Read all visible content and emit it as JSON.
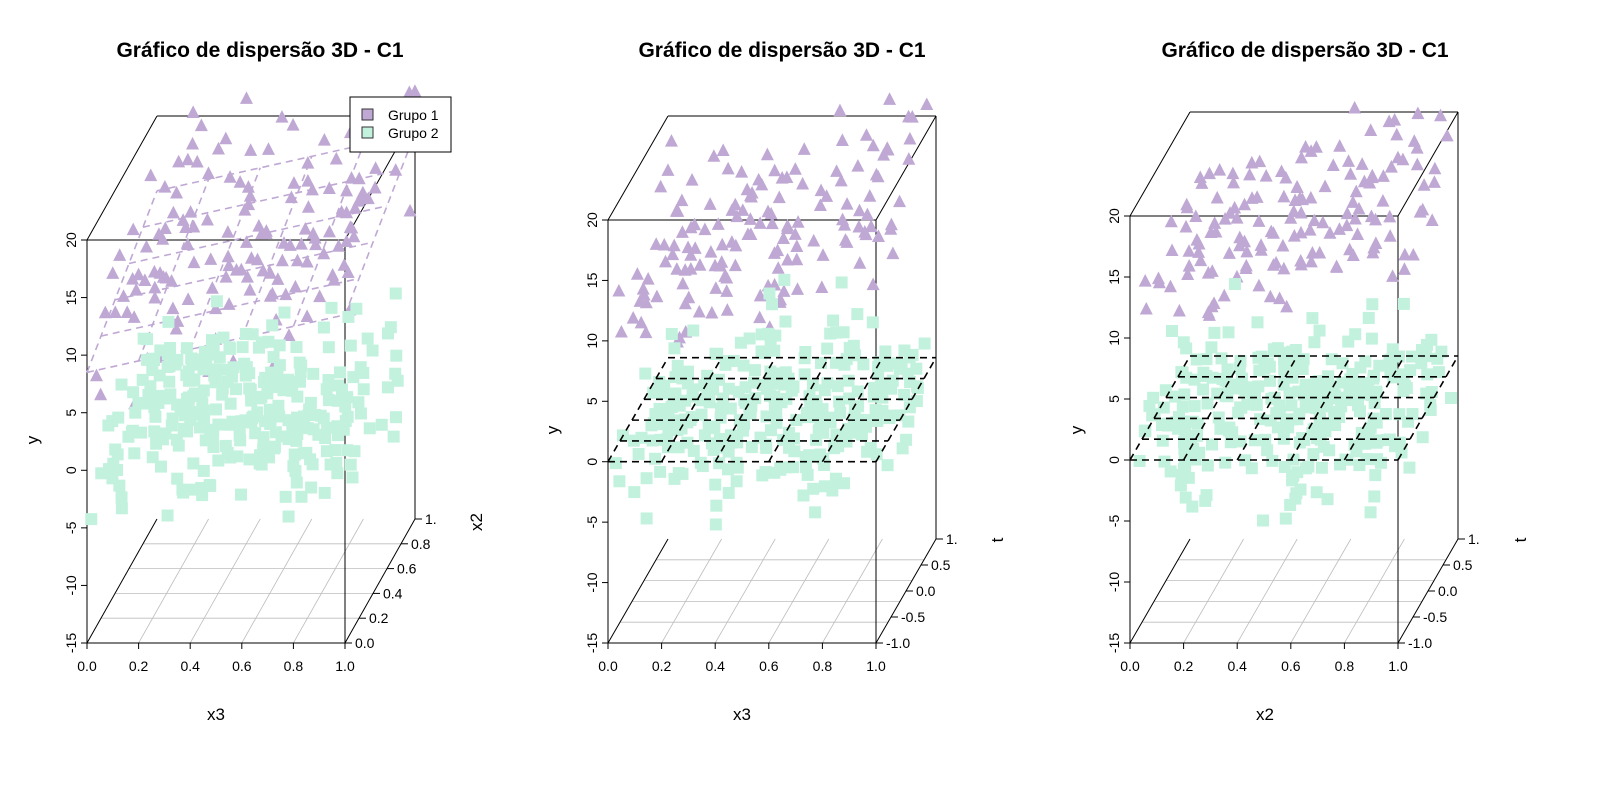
{
  "legend": {
    "placement": "top-right of first panel",
    "items": [
      {
        "label": "Grupo 1",
        "color": "#BFA8D4",
        "marker": "triangle"
      },
      {
        "label": "Grupo 2",
        "color": "#C2F2DE",
        "marker": "square"
      }
    ]
  },
  "chart_data": [
    {
      "type": "scatter",
      "title": "Gráfico de dispersão 3D - C1",
      "xlabel": "x3",
      "ylabel": "y",
      "zlabel": "x2",
      "xticks": [
        "0.0",
        "0.2",
        "0.4",
        "0.6",
        "0.8",
        "1.0"
      ],
      "yticks": [
        "-15",
        "-10",
        "-5",
        "0",
        "5",
        "10",
        "15",
        "20"
      ],
      "zticks": [
        "0.0",
        "0.2",
        "0.4",
        "0.6",
        "0.8",
        "1."
      ],
      "xlim": [
        0,
        1
      ],
      "ylim": [
        -15,
        20
      ],
      "zlim": [
        0,
        1
      ],
      "plane": {
        "color": "#BFA8D4",
        "style": "dashed",
        "y_base": 8.5,
        "x_slope": 5,
        "z_slope": 5
      },
      "series": [
        {
          "name": "Grupo 1",
          "marker": "triangle",
          "color": "#BFA8D4",
          "count": 150,
          "y_mean": 15,
          "y_spread": 2.5,
          "x_slope": 4,
          "z_slope": 6
        },
        {
          "name": "Grupo 2",
          "marker": "square",
          "color": "#C2F2DE",
          "count": 300,
          "y_mean": 0,
          "y_spread": 2.5,
          "x_slope": 0,
          "z_slope": 0
        }
      ]
    },
    {
      "type": "scatter",
      "title": "Gráfico de dispersão 3D - C1",
      "xlabel": "x3",
      "ylabel": "y",
      "zlabel": "t",
      "xticks": [
        "0.0",
        "0.2",
        "0.4",
        "0.6",
        "0.8",
        "1.0"
      ],
      "yticks": [
        "-15",
        "-10",
        "-5",
        "0",
        "5",
        "10",
        "15",
        "20"
      ],
      "zticks": [
        "-1.0",
        "-0.5",
        "0.0",
        "0.5",
        "1."
      ],
      "xlim": [
        0,
        1
      ],
      "ylim": [
        -15,
        20
      ],
      "zlim": [
        -1,
        1
      ],
      "plane": {
        "color": "#000000",
        "style": "dashed",
        "y_base": 0,
        "x_slope": 0,
        "z_slope": 0
      },
      "series": [
        {
          "name": "Grupo 1",
          "marker": "triangle",
          "color": "#BFA8D4",
          "count": 150,
          "y_mean": 15,
          "y_spread": 2.5,
          "x_slope": 5,
          "z_slope": 3
        },
        {
          "name": "Grupo 2",
          "marker": "square",
          "color": "#C2F2DE",
          "count": 300,
          "y_mean": 0,
          "y_spread": 2.5,
          "x_slope": 0,
          "z_slope": 0
        }
      ]
    },
    {
      "type": "scatter",
      "title": "Gráfico de dispersão 3D - C1",
      "xlabel": "x2",
      "ylabel": "y",
      "zlabel": "t",
      "xticks": [
        "0.0",
        "0.2",
        "0.4",
        "0.6",
        "0.8",
        "1.0"
      ],
      "yticks": [
        "-15",
        "-10",
        "-5",
        "0",
        "5",
        "10",
        "15",
        "20"
      ],
      "zticks": [
        "-1.0",
        "-0.5",
        "0.0",
        "0.5",
        "1."
      ],
      "xlim": [
        0,
        1
      ],
      "ylim": [
        -15,
        20
      ],
      "zlim": [
        -1,
        1
      ],
      "plane": {
        "color": "#000000",
        "style": "dashed",
        "y_base": 0,
        "x_slope": 0,
        "z_slope": 0
      },
      "series": [
        {
          "name": "Grupo 1",
          "marker": "triangle",
          "color": "#BFA8D4",
          "count": 150,
          "y_mean": 15,
          "y_spread": 2.5,
          "x_slope": 4,
          "z_slope": 2
        },
        {
          "name": "Grupo 2",
          "marker": "square",
          "color": "#C2F2DE",
          "count": 300,
          "y_mean": 0,
          "y_spread": 2.5,
          "x_slope": 0,
          "z_slope": 0
        }
      ]
    }
  ]
}
